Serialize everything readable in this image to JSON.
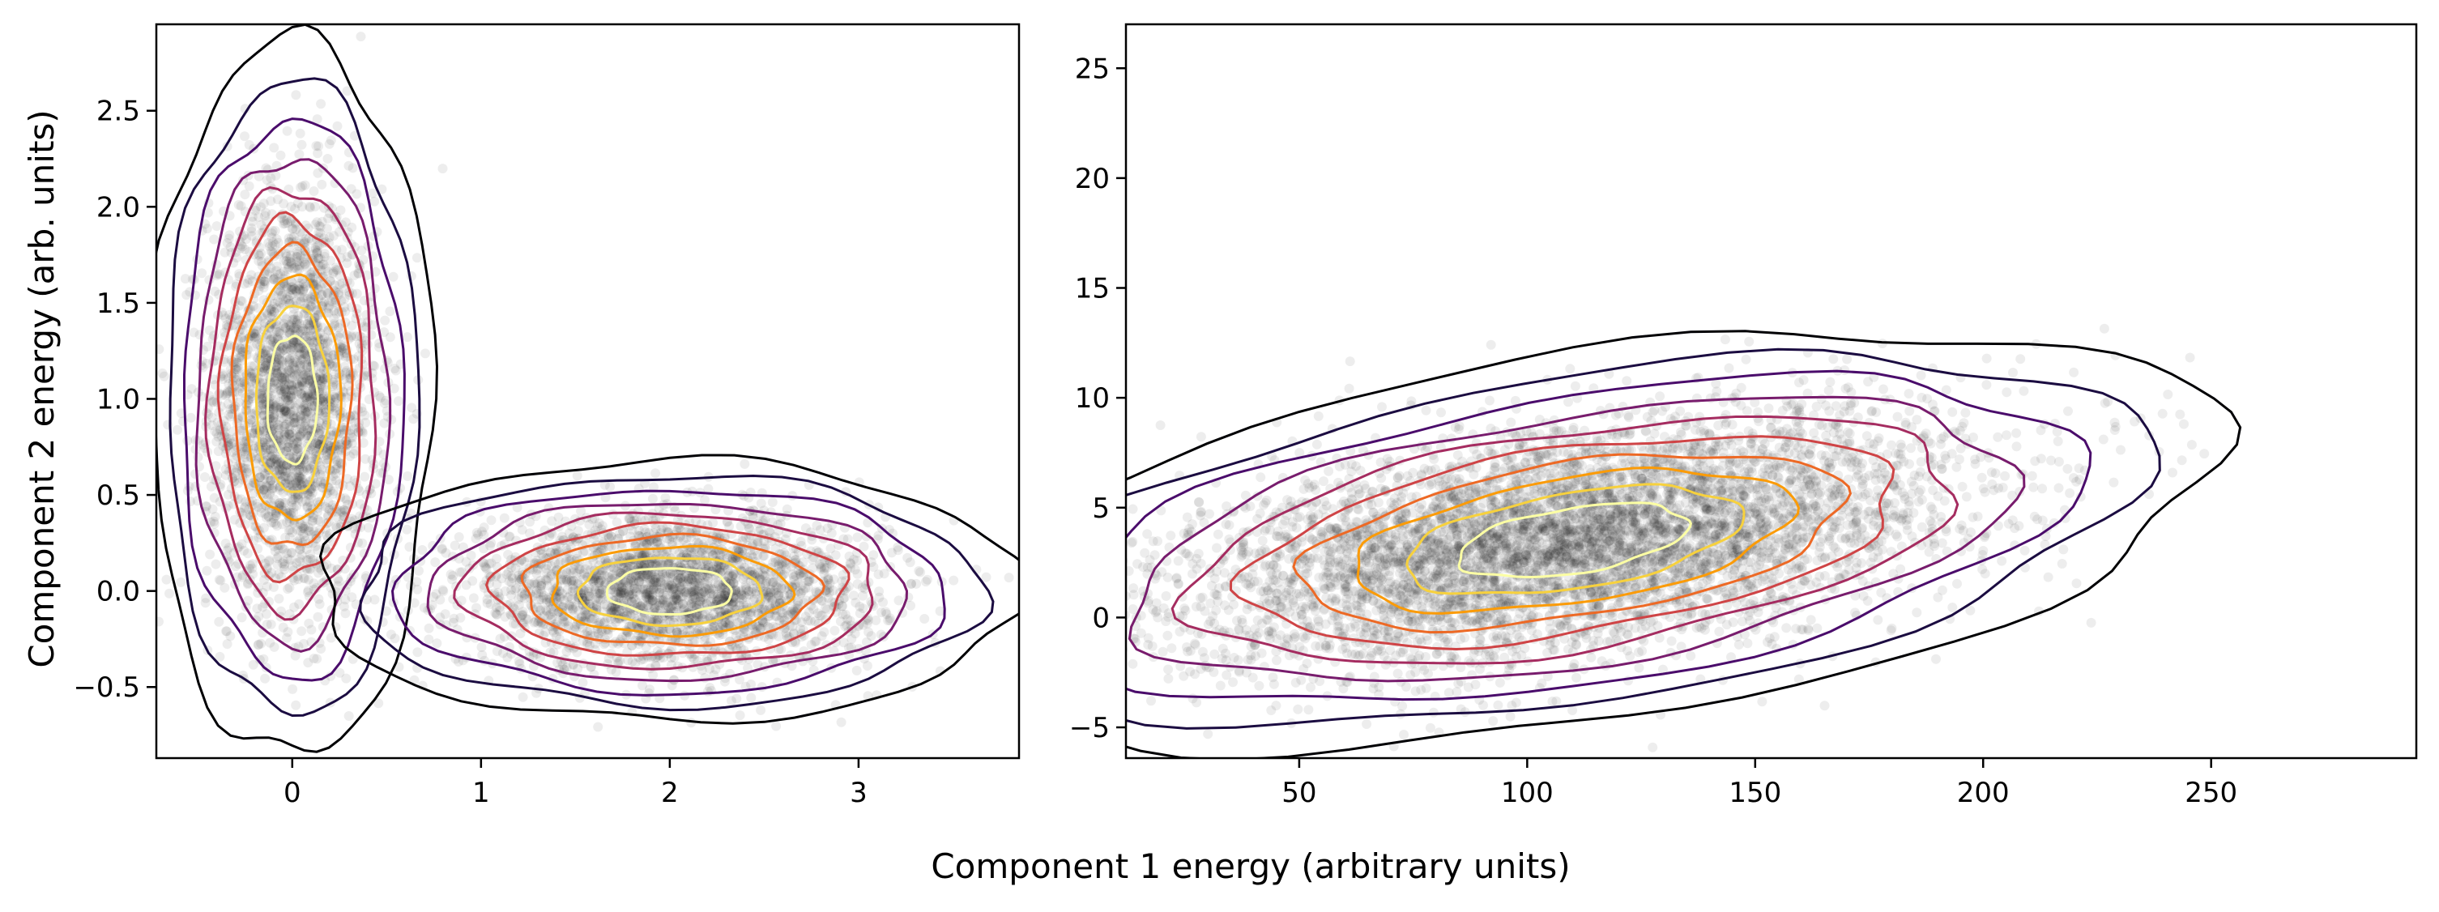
{
  "figure": {
    "xlabel": "Component 1 energy (arbitrary units)",
    "ylabel": "Component 2 energy (arb. units)"
  },
  "chart_data": [
    {
      "type": "scatter",
      "title": "",
      "xlim": [
        -0.72,
        3.85
      ],
      "ylim": [
        -0.87,
        2.95
      ],
      "xticks": [
        0,
        1,
        2,
        3
      ],
      "xtick_labels": [
        "0",
        "1",
        "2",
        "3"
      ],
      "yticks": [
        -0.5,
        0.0,
        0.5,
        1.0,
        1.5,
        2.0,
        2.5
      ],
      "ytick_labels": [
        "−0.5",
        "0.0",
        "0.5",
        "1.0",
        "1.5",
        "2.0",
        "2.5"
      ],
      "grid": false,
      "overlay": "density contours (inferno colormap)",
      "clusters": [
        {
          "center": [
            0.0,
            1.0
          ],
          "sd": [
            0.22,
            0.55
          ],
          "rho": 0.0,
          "n": 2600
        },
        {
          "center": [
            2.0,
            0.0
          ],
          "sd": [
            0.55,
            0.2
          ],
          "rho": 0.0,
          "n": 2600
        }
      ]
    },
    {
      "type": "scatter",
      "title": "",
      "xlim": [
        12,
        295
      ],
      "ylim": [
        -6.4,
        27
      ],
      "xticks": [
        50,
        100,
        150,
        200,
        250
      ],
      "xtick_labels": [
        "50",
        "100",
        "150",
        "200",
        "250"
      ],
      "yticks": [
        -5,
        0,
        5,
        10,
        15,
        20,
        25
      ],
      "ytick_labels": [
        "−5",
        "0",
        "5",
        "10",
        "15",
        "20",
        "25"
      ],
      "grid": false,
      "overlay": "density contours (inferno colormap)",
      "clusters": [
        {
          "center": [
            110,
            3.5
          ],
          "sd": [
            42,
            2.8
          ],
          "rho": 0.45,
          "n": 6000
        }
      ]
    }
  ],
  "colors": {
    "points": "#000000",
    "contours": [
      "#000004",
      "#1b0c41",
      "#4a0c6b",
      "#781c6d",
      "#a52c60",
      "#cf4446",
      "#ed6925",
      "#fb9b06",
      "#f7d13d",
      "#fcffa4"
    ]
  }
}
